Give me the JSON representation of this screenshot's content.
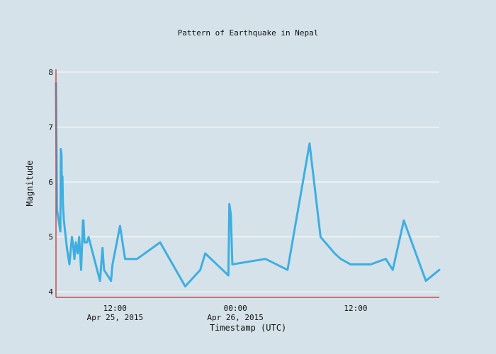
{
  "chart_data": {
    "type": "line",
    "title": "Pattern of Earthquake in Nepal",
    "xlabel": "Timestamp (UTC)",
    "ylabel": "Magnitude",
    "ylim": [
      3.9,
      8.05
    ],
    "xlim_hours_from_apr25_00": [
      6.11,
      44.34
    ],
    "y_ticks": [
      4,
      5,
      6,
      7,
      8
    ],
    "x_ticks": [
      {
        "hour": 12,
        "line1": "12:00",
        "line2": "Apr 25, 2015"
      },
      {
        "hour": 24,
        "line1": "00:00",
        "line2": "Apr 26, 2015"
      },
      {
        "hour": 36,
        "line1": "12:00",
        "line2": ""
      }
    ],
    "line_color": "#3eaee0",
    "grid": true,
    "series": [
      {
        "name": "Magnitude",
        "x_hours": [
          6.11,
          6.14,
          6.17,
          6.21,
          6.55,
          6.6,
          6.66,
          6.7,
          6.75,
          6.8,
          6.9,
          7.2,
          7.45,
          7.7,
          7.85,
          7.95,
          8.08,
          8.27,
          8.42,
          8.62,
          8.8,
          8.85,
          8.96,
          9.2,
          9.36,
          10.5,
          10.75,
          10.9,
          11.6,
          11.75,
          12.5,
          13.0,
          13.7,
          14.2,
          16.5,
          19.0,
          20.5,
          21.0,
          23.3,
          23.4,
          23.55,
          23.7,
          27.0,
          29.2,
          31.4,
          32.5,
          33.9,
          34.5,
          35.5,
          36.4,
          37.0,
          37.3,
          37.5,
          39.0,
          39.7,
          40.8,
          43.0,
          44.34
        ],
        "y": [
          7.8,
          7.1,
          6.6,
          5.5,
          5.1,
          6.6,
          6.5,
          5.8,
          6.1,
          5.6,
          5.3,
          4.8,
          4.5,
          5.0,
          4.8,
          4.6,
          4.9,
          4.7,
          5.0,
          4.4,
          5.3,
          5.3,
          4.9,
          4.9,
          5.0,
          4.2,
          4.8,
          4.4,
          4.2,
          4.5,
          5.2,
          4.6,
          4.6,
          4.6,
          4.9,
          4.1,
          4.4,
          4.7,
          4.3,
          5.6,
          5.4,
          4.5,
          4.6,
          4.4,
          6.7,
          5.0,
          4.7,
          4.6,
          4.5,
          4.5,
          4.5,
          4.5,
          4.5,
          4.6,
          4.4,
          5.3,
          4.2,
          4.4
        ]
      }
    ]
  }
}
